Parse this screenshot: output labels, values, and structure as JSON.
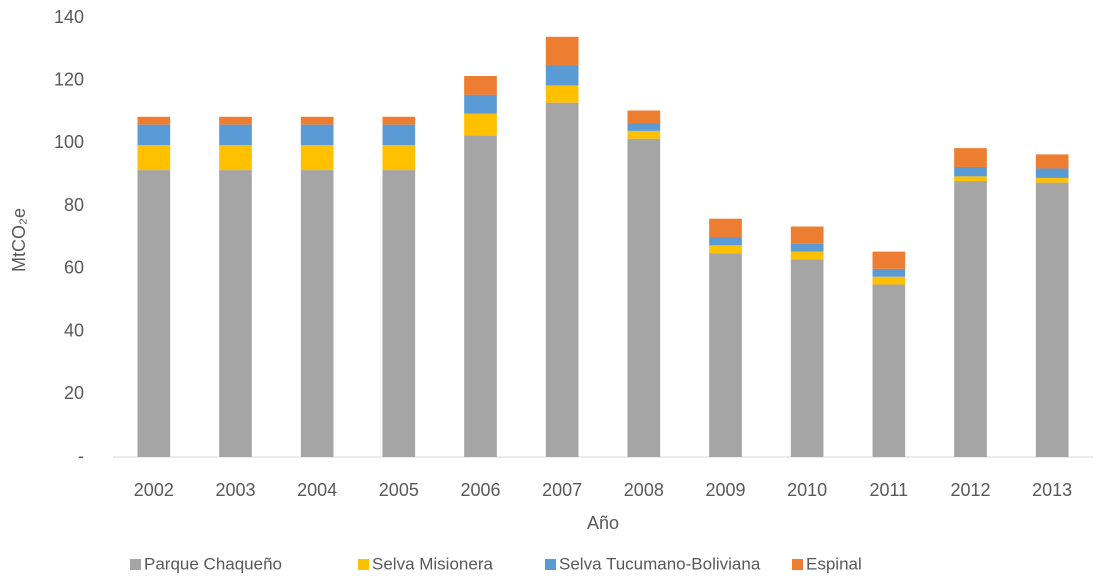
{
  "chart_data": {
    "type": "stacked_bar",
    "y_label": "MtCO₂e",
    "x_label": "Año",
    "categories": [
      "2002",
      "2003",
      "2004",
      "2005",
      "2006",
      "2007",
      "2008",
      "2009",
      "2010",
      "2011",
      "2012",
      "2013"
    ],
    "series": [
      {
        "name": "Parque Chaqueño",
        "color": "#a5a5a5",
        "values": [
          91.5,
          91.5,
          91.5,
          91.5,
          102.5,
          113,
          101.5,
          65,
          63,
          55,
          88,
          87.5
        ]
      },
      {
        "name": "Selva Misionera",
        "color": "#ffc000",
        "values": [
          8,
          8,
          8,
          8,
          7,
          5.5,
          2.5,
          2.5,
          2.5,
          2.5,
          1.5,
          1.5
        ]
      },
      {
        "name": "Selva Tucumano-Boliviana",
        "color": "#5b9bd5",
        "values": [
          6.5,
          6.5,
          6.5,
          6.5,
          6,
          6.5,
          2.5,
          2.5,
          2.5,
          2.5,
          3,
          3
        ]
      },
      {
        "name": "Espinal",
        "color": "#ed7d31",
        "values": [
          2.5,
          2.5,
          2.5,
          2.5,
          6,
          9,
          4,
          6,
          5.5,
          5.5,
          6,
          4.5
        ]
      }
    ],
    "ylim": [
      0,
      140
    ],
    "yticks": [
      {
        "value": 0,
        "label": "-"
      },
      20,
      40,
      60,
      80,
      100,
      120,
      140
    ],
    "legend": "bottom"
  }
}
